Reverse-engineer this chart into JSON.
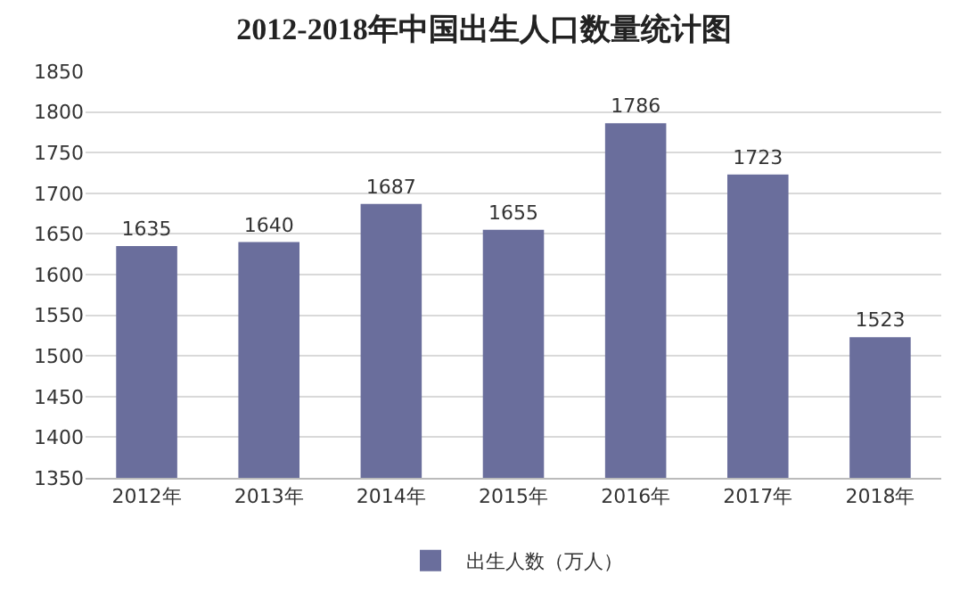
{
  "chart_data": {
    "type": "bar",
    "title": "2012-2018年中国出生人口数量统计图",
    "categories": [
      "2012年",
      "2013年",
      "2014年",
      "2015年",
      "2016年",
      "2017年",
      "2018年"
    ],
    "series": [
      {
        "name": "出生人数（万人）",
        "color": "#6a6e9c",
        "values": [
          1635,
          1640,
          1687,
          1655,
          1786,
          1723,
          1523
        ]
      }
    ],
    "ylim": [
      1350,
      1850
    ],
    "yticks": [
      1350,
      1400,
      1450,
      1500,
      1550,
      1600,
      1650,
      1700,
      1750,
      1800,
      1850
    ],
    "grid": "y",
    "legend": "bottom",
    "data_labels": true
  }
}
